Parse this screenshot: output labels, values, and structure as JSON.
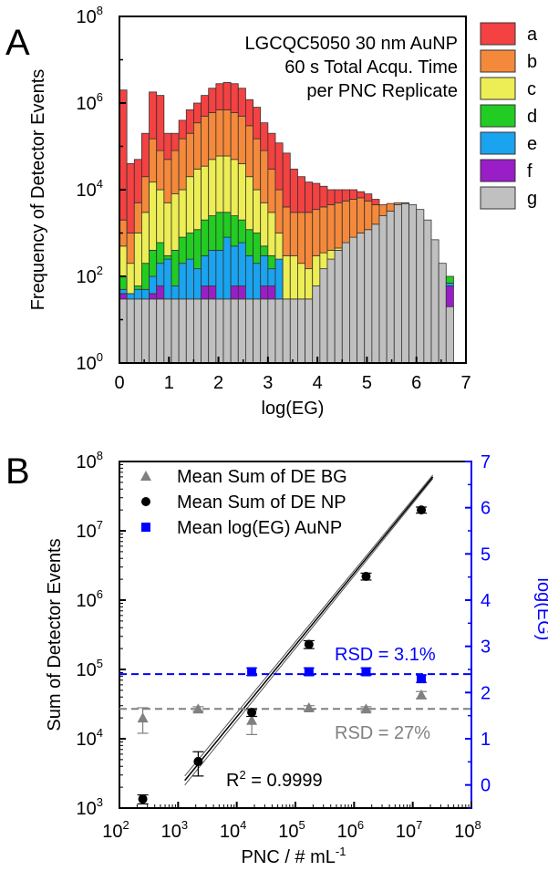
{
  "chart_data": [
    {
      "type": "bar",
      "panel_label": "A",
      "annotation": [
        "LGCQC5050 30 nm AuNP",
        "60 s Total Acqu. Time",
        "per PNC Replicate"
      ],
      "xlabel": "log(EG)",
      "ylabel": "Frequency of Detector Events",
      "xlim": [
        0,
        7
      ],
      "ylim": [
        1,
        100000000
      ],
      "yscale": "log",
      "x_tick_labels": [
        "0",
        "1",
        "2",
        "3",
        "4",
        "5",
        "6",
        "7"
      ],
      "y_tick_exponents": [
        "0",
        "2",
        "4",
        "6",
        "8"
      ],
      "legend_position": "right",
      "bin_width": 0.15,
      "x": [
        0.075,
        0.225,
        0.375,
        0.525,
        0.675,
        0.825,
        0.975,
        1.125,
        1.275,
        1.425,
        1.575,
        1.725,
        1.875,
        2.025,
        2.175,
        2.325,
        2.475,
        2.625,
        2.775,
        2.925,
        3.075,
        3.225,
        3.375,
        3.525,
        3.675,
        3.825,
        3.975,
        4.125,
        4.275,
        4.425,
        4.575,
        4.725,
        4.875,
        5.025,
        5.175,
        5.325,
        5.475,
        5.625,
        5.775,
        5.925,
        6.075,
        6.225,
        6.375,
        6.525,
        6.675
      ],
      "series": [
        {
          "name": "g",
          "color": "#c0c0c0",
          "values": [
            30,
            30,
            30,
            30,
            30,
            30,
            30,
            30,
            30,
            30,
            30,
            30,
            30,
            30,
            30,
            30,
            30,
            30,
            30,
            30,
            30,
            30,
            30,
            30,
            30,
            30,
            60,
            150,
            250,
            400,
            600,
            800,
            1000,
            1200,
            1600,
            2500,
            3200,
            4500,
            4800,
            4500,
            3500,
            2000,
            700,
            200,
            20
          ]
        },
        {
          "name": "f",
          "color": "#9a1ec8",
          "values": [
            40,
            30,
            30,
            30,
            40,
            60,
            30,
            30,
            30,
            30,
            30,
            60,
            60,
            30,
            30,
            60,
            60,
            30,
            30,
            60,
            60,
            30,
            30,
            30,
            30,
            30,
            60,
            150,
            250,
            400,
            600,
            800,
            1000,
            1200,
            1600,
            2500,
            3200,
            4500,
            4800,
            4500,
            3500,
            2000,
            700,
            200,
            60
          ]
        },
        {
          "name": "e",
          "color": "#1aa3ef",
          "values": [
            50,
            40,
            50,
            50,
            100,
            200,
            250,
            60,
            200,
            250,
            150,
            300,
            400,
            400,
            800,
            500,
            600,
            300,
            200,
            300,
            150,
            250,
            30,
            30,
            30,
            30,
            60,
            150,
            250,
            400,
            600,
            800,
            1000,
            1200,
            1600,
            2500,
            3200,
            4500,
            4800,
            4500,
            3500,
            2000,
            700,
            200,
            70
          ]
        },
        {
          "name": "d",
          "color": "#22cc22",
          "values": [
            100,
            40,
            60,
            200,
            400,
            600,
            300,
            400,
            800,
            1000,
            1200,
            2000,
            2500,
            3000,
            3000,
            2500,
            2000,
            1200,
            1000,
            500,
            300,
            250,
            30,
            30,
            30,
            30,
            60,
            150,
            250,
            400,
            600,
            800,
            1000,
            1200,
            1600,
            2500,
            3200,
            4500,
            4800,
            4500,
            3500,
            2000,
            700,
            200,
            100
          ]
        },
        {
          "name": "c",
          "color": "#eded55",
          "values": [
            500,
            200,
            1000,
            3000,
            15000,
            10000,
            5000,
            8000,
            10000,
            20000,
            30000,
            35000,
            50000,
            60000,
            60000,
            50000,
            40000,
            20000,
            10000,
            5000,
            3000,
            1000,
            300,
            300,
            200,
            150,
            300,
            350,
            400,
            450,
            500,
            800,
            1000,
            1200,
            1600,
            2500,
            3200,
            4500,
            4800,
            4500,
            3500,
            2000,
            700,
            200,
            100
          ]
        },
        {
          "name": "b",
          "color": "#f5893b",
          "values": [
            2000,
            1000,
            5000,
            20000,
            150000,
            80000,
            50000,
            80000,
            150000,
            200000,
            350000,
            500000,
            600000,
            700000,
            700000,
            600000,
            500000,
            300000,
            150000,
            80000,
            30000,
            10000,
            4000,
            3000,
            3000,
            3000,
            3500,
            4000,
            4500,
            5000,
            5500,
            6000,
            6500,
            5500,
            4500,
            4500,
            4800,
            5000,
            5000,
            4500,
            3500,
            2000,
            700,
            200,
            100
          ]
        },
        {
          "name": "a",
          "color": "#f44142",
          "values": [
            2000000,
            40000,
            50000,
            200000,
            1800000,
            1500000,
            200000,
            200000,
            400000,
            700000,
            1000000,
            1500000,
            2200000,
            2800000,
            3000000,
            2800000,
            2200000,
            1200000,
            800000,
            350000,
            200000,
            120000,
            70000,
            30000,
            20000,
            15000,
            14000,
            12000,
            10000,
            10000,
            10000,
            10000,
            9000,
            8000,
            6000,
            4500,
            4800,
            5000,
            5000,
            4500,
            3500,
            2000,
            700,
            200,
            100
          ]
        }
      ]
    },
    {
      "type": "scatter",
      "panel_label": "B",
      "xlabel": "PNC / # mL",
      "xlabel_sup": "-1",
      "ylabel": "Sum of Detector Events",
      "ylabel_right": "log(EG)",
      "xscale": "log",
      "yscale": "log",
      "xlim": [
        100,
        100000000
      ],
      "ylim": [
        1000,
        100000000
      ],
      "ylim_right": [
        -0.5,
        7
      ],
      "x_tick_exponents": [
        "2",
        "3",
        "4",
        "5",
        "6",
        "7",
        "8"
      ],
      "y_tick_exponents": [
        "3",
        "4",
        "5",
        "6",
        "7",
        "8"
      ],
      "right_tick_labels": [
        "0",
        "1",
        "2",
        "3",
        "4",
        "5",
        "6",
        "7"
      ],
      "right_axis_color": "#0000ff",
      "legend_position": "top-left",
      "series": [
        {
          "name": "Mean Sum of DE BG",
          "marker": "triangle",
          "color": "#808080",
          "axis": "left",
          "x": [
            250,
            2200,
            18000,
            170000,
            1600000,
            14000000
          ],
          "y": [
            20000,
            27000,
            18500,
            28000,
            27000,
            43000
          ],
          "err": [
            8000,
            2000,
            7000,
            2000,
            2000,
            5000
          ]
        },
        {
          "name": "Mean Sum of DE NP",
          "marker": "circle",
          "color": "#000000",
          "axis": "left",
          "x": [
            250,
            2200,
            18000,
            170000,
            1600000,
            14000000
          ],
          "y": [
            1350,
            4700,
            24000,
            230000,
            2200000,
            20000000
          ],
          "err": [
            200,
            1800,
            3000,
            30000,
            250000,
            2000000
          ]
        },
        {
          "name": "Mean log(EG) AuNP",
          "marker": "square",
          "color": "#0000ff",
          "axis": "right",
          "x": [
            18000,
            170000,
            1600000,
            14000000
          ],
          "y": [
            2.45,
            2.45,
            2.45,
            2.3
          ],
          "err": [
            0.08,
            0.08,
            0.08,
            0.08
          ]
        }
      ],
      "fit": {
        "label": "R",
        "label_sup": "2",
        "label_value": " = 0.9999",
        "x": [
          1300,
          22000000
        ],
        "y": [
          2500,
          60000000
        ]
      },
      "reference_lines": [
        {
          "label": "RSD = 3.1%",
          "axis": "right",
          "value": 2.4,
          "color": "#0000ff"
        },
        {
          "label": "RSD = 27%",
          "axis": "left",
          "value": 27000,
          "color": "#808080"
        }
      ]
    }
  ]
}
